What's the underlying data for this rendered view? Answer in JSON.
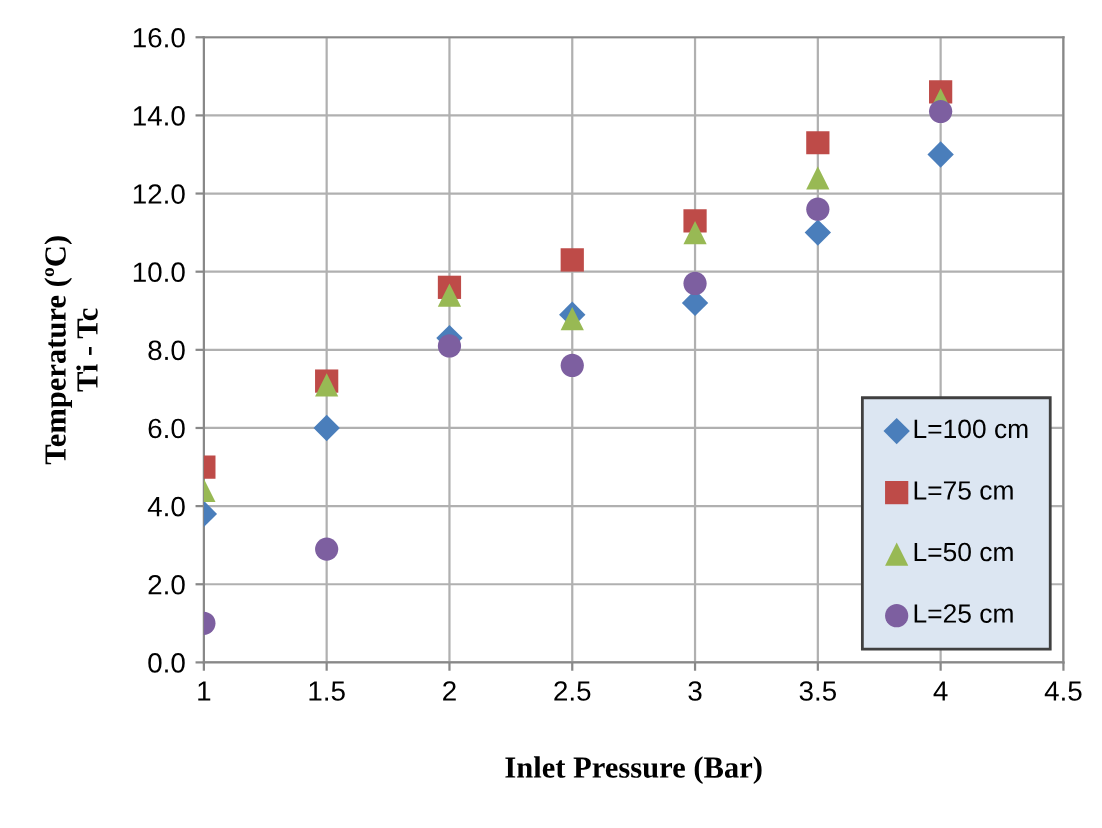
{
  "chart_data": {
    "type": "scatter",
    "xlabel": "Inlet Pressure (Bar)",
    "ylabel": "Temperature (ºC)\nTi - Tc",
    "x": [
      1,
      1.5,
      2,
      2.5,
      3,
      3.5,
      4
    ],
    "series": [
      {
        "name": "L=100 cm",
        "color": "#4a7ebb",
        "marker": "diamond",
        "values": [
          3.8,
          6.0,
          8.3,
          8.9,
          9.2,
          11.0,
          13.0
        ]
      },
      {
        "name": "L=75 cm",
        "color": "#be4b48",
        "marker": "square",
        "values": [
          5.0,
          7.2,
          9.6,
          10.3,
          11.3,
          13.3,
          14.6
        ]
      },
      {
        "name": "L=50 cm",
        "color": "#98b954",
        "marker": "triangle",
        "values": [
          4.4,
          7.1,
          9.4,
          8.8,
          11.0,
          12.4,
          14.4
        ]
      },
      {
        "name": "L=25 cm",
        "color": "#7d5fa0",
        "marker": "circle",
        "values": [
          1.0,
          2.9,
          8.1,
          7.6,
          9.7,
          11.6,
          14.1
        ]
      }
    ],
    "xlim": [
      1,
      4.5
    ],
    "xticks": [
      1,
      1.5,
      2,
      2.5,
      3,
      3.5,
      4,
      4.5
    ],
    "ylim": [
      0,
      16
    ],
    "yticks": [
      {
        "value": 0,
        "label": "0.0"
      },
      {
        "value": 2,
        "label": "2.0"
      },
      {
        "value": 4,
        "label": "4.0"
      },
      {
        "value": 6,
        "label": "6.0"
      },
      {
        "value": 8,
        "label": "8.0"
      },
      {
        "value": 10,
        "label": "10.0"
      },
      {
        "value": 12,
        "label": "12.0"
      },
      {
        "value": 14,
        "label": "14.0"
      },
      {
        "value": 16,
        "label": "16.0"
      }
    ],
    "grid": true,
    "legend": "lower right"
  }
}
